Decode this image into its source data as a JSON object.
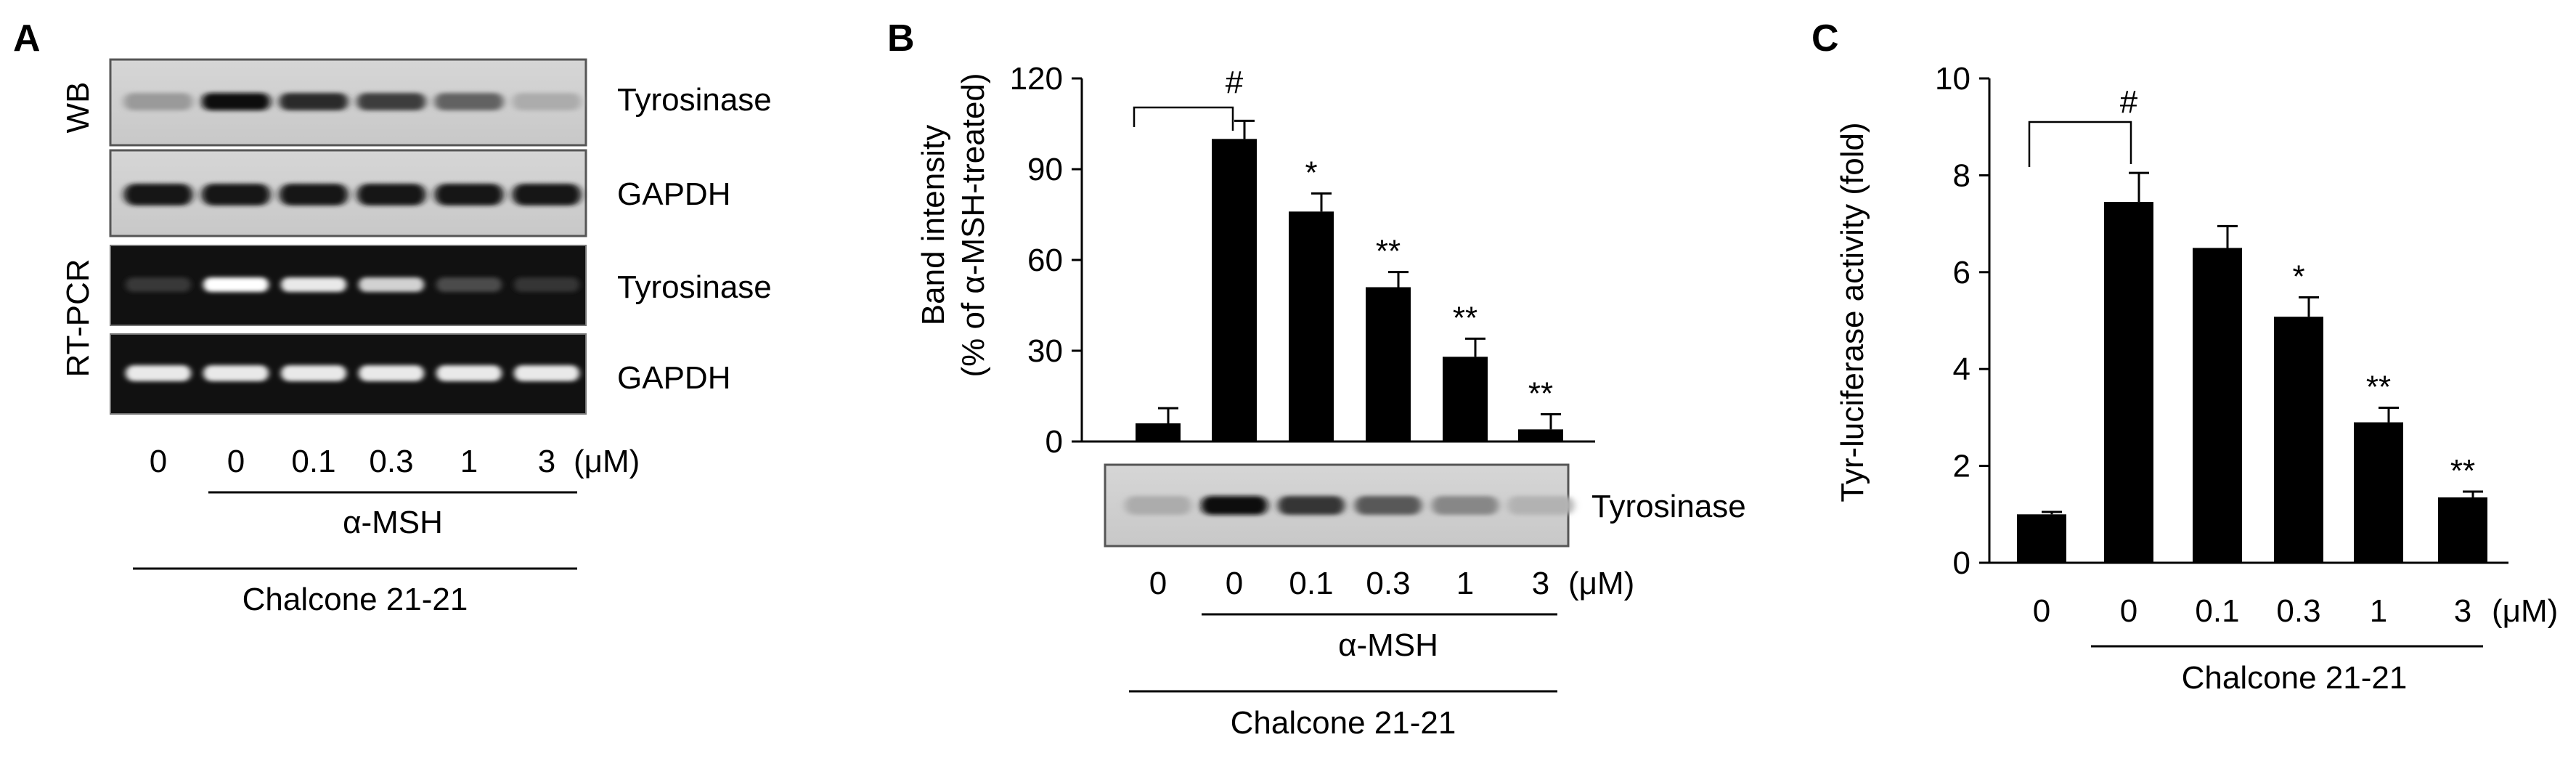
{
  "panels": {
    "a": {
      "letter": "A",
      "side_labels": [
        "WB",
        "RT-PCR"
      ],
      "blot_labels": [
        "Tyrosinase",
        "GAPDH",
        "Tyrosinase",
        "GAPDH"
      ],
      "doses": [
        "0",
        "0",
        "0.1",
        "0.3",
        "1",
        "3"
      ],
      "unit": "(μM)",
      "treatment": "α-MSH",
      "compound": "Chalcone 21-21",
      "band_intensity": {
        "wb_tyrosinase": [
          0.25,
          1.0,
          0.85,
          0.75,
          0.55,
          0.15
        ],
        "wb_gapdh": [
          0.95,
          0.95,
          0.95,
          0.95,
          0.95,
          0.95
        ],
        "pcr_tyrosinase": [
          0.12,
          1.0,
          0.9,
          0.8,
          0.2,
          0.1
        ],
        "pcr_gapdh": [
          0.9,
          0.9,
          0.9,
          0.9,
          0.9,
          0.9
        ]
      }
    },
    "b": {
      "letter": "B",
      "blot_label": "Tyrosinase",
      "doses": [
        "0",
        "0",
        "0.1",
        "0.3",
        "1",
        "3"
      ],
      "unit": "(μM)",
      "treatment": "α-MSH",
      "compound": "Chalcone 21-21",
      "band_intensity": [
        0.15,
        1.0,
        0.8,
        0.6,
        0.35,
        0.12
      ]
    },
    "c": {
      "letter": "C",
      "doses": [
        "0",
        "0",
        "0.1",
        "0.3",
        "1",
        "3"
      ],
      "unit": "(μM)",
      "compound": "Chalcone 21-21"
    }
  },
  "chart_data": [
    {
      "type": "bar",
      "panel": "B",
      "categories": [
        "0",
        "0",
        "0.1",
        "0.3",
        "1",
        "3"
      ],
      "values": [
        6,
        100,
        76,
        51,
        28,
        4
      ],
      "errors": [
        5,
        6,
        6,
        5,
        6,
        5
      ],
      "significance": [
        "",
        "#",
        "*",
        "**",
        "**",
        "**"
      ],
      "ylabel": "Band intensity\n(% of α-MSH-treated)",
      "ylim": [
        0,
        120
      ],
      "yticks": [
        "0",
        "30",
        "60",
        "90",
        "120"
      ],
      "bar_color": "#000000",
      "grid": false
    },
    {
      "type": "bar",
      "panel": "C",
      "categories": [
        "0",
        "0",
        "0.1",
        "0.3",
        "1",
        "3"
      ],
      "values": [
        1.0,
        7.45,
        6.5,
        5.08,
        2.9,
        1.35
      ],
      "errors": [
        0.05,
        0.6,
        0.45,
        0.4,
        0.3,
        0.12
      ],
      "significance": [
        "",
        "#",
        "",
        "*",
        "**",
        "**"
      ],
      "ylabel": "Tyr-luciferase activity (fold)",
      "ylim": [
        0,
        10
      ],
      "yticks": [
        "0",
        "2",
        "4",
        "6",
        "8",
        "10"
      ],
      "bar_color": "#000000",
      "grid": false
    }
  ]
}
